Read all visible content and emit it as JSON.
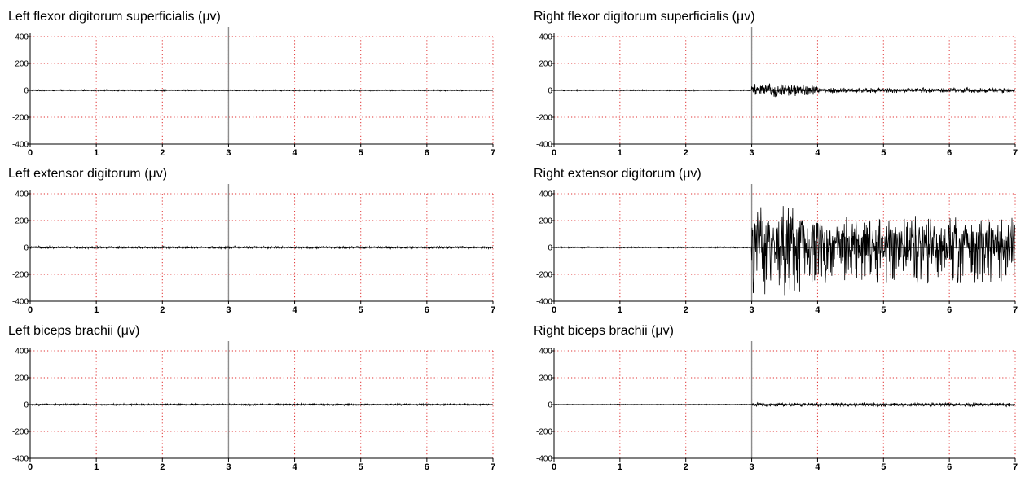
{
  "colors": {
    "grid": "#e03030",
    "trace": "#000000",
    "marker": "#8c8c8c",
    "axis": "#000000"
  },
  "chart_data": [
    {
      "type": "line",
      "title": "Left flexor digitorum superficialis (μv)",
      "xlim": [
        0,
        7
      ],
      "ylim": [
        -400,
        400
      ],
      "xticks": [
        "0",
        "1",
        "2",
        "3",
        "4",
        "5",
        "6",
        "7"
      ],
      "yticks": [
        "400",
        "200",
        "0",
        "-200",
        "-400"
      ],
      "marker_x": 3,
      "grid": true,
      "series": [
        {
          "segments": [
            {
              "x_start": 0,
              "x_end": 7,
              "amplitude": 6
            }
          ]
        }
      ]
    },
    {
      "type": "line",
      "title": "Right flexor digitorum superficialis (μv)",
      "xlim": [
        0,
        7
      ],
      "ylim": [
        -400,
        400
      ],
      "xticks": [
        "0",
        "1",
        "2",
        "3",
        "4",
        "5",
        "6",
        "7"
      ],
      "yticks": [
        "400",
        "200",
        "0",
        "-200",
        "-400"
      ],
      "marker_x": 3,
      "grid": true,
      "series": [
        {
          "segments": [
            {
              "x_start": 0,
              "x_end": 3,
              "amplitude": 5
            },
            {
              "x_start": 3,
              "x_end": 4,
              "amplitude": 55
            },
            {
              "x_start": 4,
              "x_end": 7,
              "amplitude": 22
            }
          ]
        }
      ]
    },
    {
      "type": "line",
      "title": "Left extensor digitorum (μv)",
      "xlim": [
        0,
        7
      ],
      "ylim": [
        -400,
        400
      ],
      "xticks": [
        "0",
        "1",
        "2",
        "3",
        "4",
        "5",
        "6",
        "7"
      ],
      "yticks": [
        "400",
        "200",
        "0",
        "-200",
        "-400"
      ],
      "marker_x": 3,
      "grid": true,
      "series": [
        {
          "segments": [
            {
              "x_start": 0,
              "x_end": 7,
              "amplitude": 10
            }
          ]
        }
      ]
    },
    {
      "type": "line",
      "title": "Right extensor digitorum (μv)",
      "xlim": [
        0,
        7
      ],
      "ylim": [
        -400,
        400
      ],
      "xticks": [
        "0",
        "1",
        "2",
        "3",
        "4",
        "5",
        "6",
        "7"
      ],
      "yticks": [
        "400",
        "200",
        "0",
        "-200",
        "-400"
      ],
      "marker_x": 3,
      "grid": true,
      "series": [
        {
          "segments": [
            {
              "x_start": 0,
              "x_end": 3,
              "amplitude": 6
            },
            {
              "x_start": 3,
              "x_end": 3.8,
              "amplitude": 300
            },
            {
              "x_start": 3.8,
              "x_end": 7,
              "amplitude": 220
            }
          ]
        }
      ]
    },
    {
      "type": "line",
      "title": "Left biceps brachii (μv)",
      "xlim": [
        0,
        7
      ],
      "ylim": [
        -400,
        400
      ],
      "xticks": [
        "0",
        "1",
        "2",
        "3",
        "4",
        "5",
        "6",
        "7"
      ],
      "yticks": [
        "400",
        "200",
        "0",
        "-200",
        "-400"
      ],
      "marker_x": 3,
      "grid": true,
      "series": [
        {
          "segments": [
            {
              "x_start": 0,
              "x_end": 7,
              "amplitude": 8
            }
          ]
        }
      ]
    },
    {
      "type": "line",
      "title": "Right biceps brachii (μv)",
      "xlim": [
        0,
        7
      ],
      "ylim": [
        -400,
        400
      ],
      "xticks": [
        "0",
        "1",
        "2",
        "3",
        "4",
        "5",
        "6",
        "7"
      ],
      "yticks": [
        "400",
        "200",
        "0",
        "-200",
        "-400"
      ],
      "marker_x": 3,
      "grid": true,
      "series": [
        {
          "segments": [
            {
              "x_start": 0,
              "x_end": 3,
              "amplitude": 4
            },
            {
              "x_start": 3,
              "x_end": 7,
              "amplitude": 16
            }
          ]
        }
      ]
    }
  ]
}
